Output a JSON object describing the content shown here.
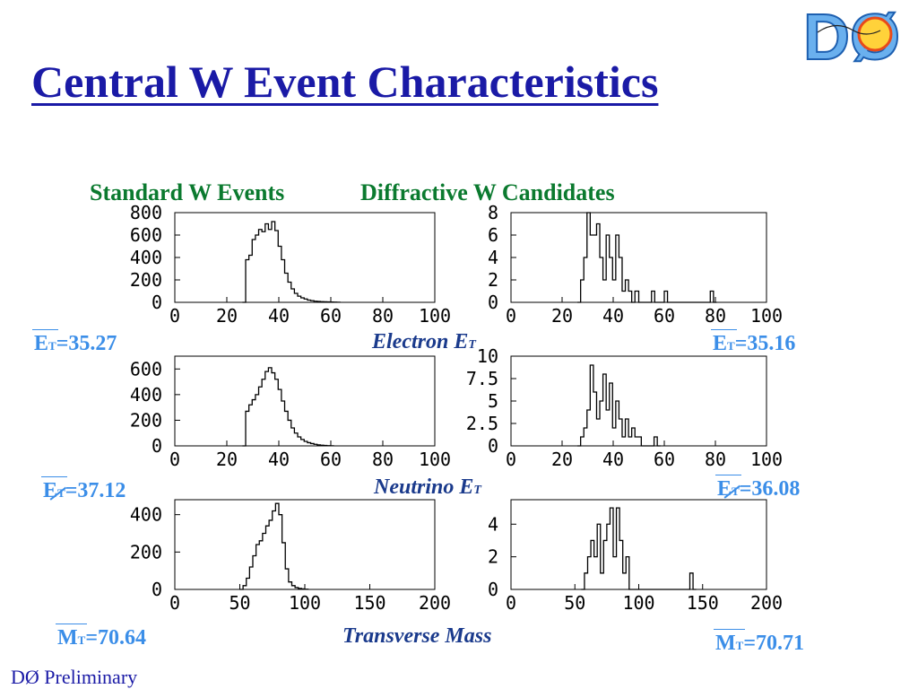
{
  "title": "Central W Event Characteristics",
  "logo_text": "DØ",
  "columns": {
    "left": "Standard W Events",
    "right": "Diffractive W Candidates"
  },
  "rows": {
    "electron": {
      "label": "Electron E",
      "sub": "T",
      "left_stat": "=35.27",
      "right_stat": "=35.16",
      "sym": "E",
      "sym_sub": "T"
    },
    "neutrino": {
      "label": "Neutrino E",
      "sub": "T",
      "left_stat": "=37.12",
      "right_stat": "=36.08",
      "sym": "E",
      "sym_sub": "T"
    },
    "mass": {
      "label": "Transverse Mass",
      "left_stat": "=70.64",
      "right_stat": "=70.71",
      "sym": "M",
      "sym_sub": "T"
    }
  },
  "footer": "DØ Preliminary",
  "colors": {
    "title": "#1a1aa6",
    "column_heads": "#0b7a2f",
    "stats": "#3b8ee8",
    "row_labels": "#1a3a8c"
  },
  "chart_data": [
    {
      "type": "histogram",
      "name": "standard-electron-et",
      "xlim": [
        0,
        100
      ],
      "ylim": [
        0,
        800
      ],
      "xticks": [
        "0",
        "20",
        "40",
        "60",
        "80",
        "100"
      ],
      "yticks": [
        "0",
        "200",
        "400",
        "600",
        "800"
      ],
      "bin_width": 1.25,
      "bins": [
        [
          26,
          0
        ],
        [
          27.25,
          380
        ],
        [
          28.5,
          420
        ],
        [
          29.75,
          560
        ],
        [
          31,
          600
        ],
        [
          32.25,
          650
        ],
        [
          33.5,
          630
        ],
        [
          34.75,
          700
        ],
        [
          36,
          650
        ],
        [
          37.25,
          720
        ],
        [
          38.5,
          640
        ],
        [
          39.75,
          500
        ],
        [
          41,
          380
        ],
        [
          42.25,
          260
        ],
        [
          43.5,
          180
        ],
        [
          44.75,
          120
        ],
        [
          46,
          80
        ],
        [
          47.25,
          55
        ],
        [
          48.5,
          40
        ],
        [
          49.75,
          30
        ],
        [
          51,
          20
        ],
        [
          52.25,
          15
        ],
        [
          53.5,
          10
        ],
        [
          54.75,
          8
        ],
        [
          56,
          6
        ],
        [
          57.25,
          5
        ],
        [
          58.5,
          4
        ],
        [
          59.75,
          3
        ],
        [
          61,
          2
        ],
        [
          62.25,
          1
        ]
      ]
    },
    {
      "type": "histogram",
      "name": "diffractive-electron-et",
      "xlim": [
        0,
        100
      ],
      "ylim": [
        0,
        8
      ],
      "xticks": [
        "0",
        "20",
        "40",
        "60",
        "80",
        "100"
      ],
      "yticks": [
        "0",
        "2",
        "4",
        "6",
        "8"
      ],
      "bin_width": 1.25,
      "bins": [
        [
          26,
          0
        ],
        [
          27.25,
          2
        ],
        [
          28.5,
          4
        ],
        [
          29.75,
          8
        ],
        [
          31,
          6
        ],
        [
          32.25,
          6
        ],
        [
          33.5,
          7
        ],
        [
          34.75,
          4
        ],
        [
          36,
          2
        ],
        [
          37.25,
          6
        ],
        [
          38.5,
          4
        ],
        [
          39.75,
          2
        ],
        [
          41,
          6
        ],
        [
          42.25,
          4
        ],
        [
          43.5,
          1
        ],
        [
          44.75,
          2
        ],
        [
          46,
          1
        ],
        [
          47.25,
          0
        ],
        [
          48.5,
          1
        ],
        [
          50,
          0
        ],
        [
          55,
          1
        ],
        [
          56.25,
          0
        ],
        [
          60,
          1
        ],
        [
          61.25,
          0
        ],
        [
          78,
          1
        ],
        [
          79.25,
          0
        ]
      ]
    },
    {
      "type": "histogram",
      "name": "standard-neutrino-et",
      "xlim": [
        0,
        100
      ],
      "ylim": [
        0,
        700
      ],
      "xticks": [
        "0",
        "20",
        "40",
        "60",
        "80",
        "100"
      ],
      "yticks": [
        "0",
        "200",
        "400",
        "600"
      ],
      "bin_width": 1.25,
      "bins": [
        [
          26,
          0
        ],
        [
          27.25,
          270
        ],
        [
          28.5,
          320
        ],
        [
          29.75,
          360
        ],
        [
          31,
          400
        ],
        [
          32.25,
          460
        ],
        [
          33.5,
          520
        ],
        [
          34.75,
          580
        ],
        [
          36,
          610
        ],
        [
          37.25,
          570
        ],
        [
          38.5,
          520
        ],
        [
          39.75,
          440
        ],
        [
          41,
          350
        ],
        [
          42.25,
          270
        ],
        [
          43.5,
          200
        ],
        [
          44.75,
          140
        ],
        [
          46,
          100
        ],
        [
          47.25,
          70
        ],
        [
          48.5,
          50
        ],
        [
          49.75,
          35
        ],
        [
          51,
          25
        ],
        [
          52.25,
          18
        ],
        [
          53.5,
          12
        ],
        [
          54.75,
          8
        ],
        [
          56,
          5
        ],
        [
          57.25,
          3
        ],
        [
          58.5,
          2
        ],
        [
          59.75,
          1
        ]
      ]
    },
    {
      "type": "histogram",
      "name": "diffractive-neutrino-et",
      "xlim": [
        0,
        100
      ],
      "ylim": [
        0,
        10
      ],
      "xticks": [
        "0",
        "20",
        "40",
        "60",
        "80",
        "100"
      ],
      "yticks": [
        "0",
        "2.5",
        "5",
        "7.5",
        "10"
      ],
      "bin_width": 1.25,
      "bins": [
        [
          26,
          0
        ],
        [
          27.25,
          1
        ],
        [
          28.5,
          2
        ],
        [
          29.75,
          4
        ],
        [
          31,
          9
        ],
        [
          32.25,
          6
        ],
        [
          33.5,
          3
        ],
        [
          34.75,
          5
        ],
        [
          36,
          8
        ],
        [
          37.25,
          4
        ],
        [
          38.5,
          7
        ],
        [
          39.75,
          2
        ],
        [
          41,
          5
        ],
        [
          42.25,
          3
        ],
        [
          43.5,
          1
        ],
        [
          44.75,
          3
        ],
        [
          46,
          1
        ],
        [
          47.25,
          2
        ],
        [
          48.5,
          1
        ],
        [
          49.75,
          1
        ],
        [
          51,
          0
        ],
        [
          56,
          1
        ],
        [
          57.25,
          0
        ]
      ]
    },
    {
      "type": "histogram",
      "name": "standard-transverse-mass",
      "xlim": [
        0,
        200
      ],
      "ylim": [
        0,
        480
      ],
      "xticks": [
        "0",
        "50",
        "100",
        "150",
        "200"
      ],
      "yticks": [
        "0",
        "200",
        "400"
      ],
      "bin_width": 2.5,
      "bins": [
        [
          50,
          0
        ],
        [
          52.5,
          20
        ],
        [
          55,
          60
        ],
        [
          57.5,
          120
        ],
        [
          60,
          180
        ],
        [
          62.5,
          240
        ],
        [
          65,
          260
        ],
        [
          67.5,
          300
        ],
        [
          70,
          340
        ],
        [
          72.5,
          370
        ],
        [
          75,
          420
        ],
        [
          77.5,
          460
        ],
        [
          80,
          400
        ],
        [
          82.5,
          250
        ],
        [
          85,
          110
        ],
        [
          87.5,
          40
        ],
        [
          90,
          20
        ],
        [
          92.5,
          10
        ],
        [
          95,
          5
        ],
        [
          97.5,
          3
        ],
        [
          100,
          1
        ]
      ]
    },
    {
      "type": "histogram",
      "name": "diffractive-transverse-mass",
      "xlim": [
        0,
        200
      ],
      "ylim": [
        0,
        5.5
      ],
      "xticks": [
        "0",
        "50",
        "100",
        "150",
        "200"
      ],
      "yticks": [
        "0",
        "2",
        "4"
      ],
      "bin_width": 2.5,
      "bins": [
        [
          55,
          0
        ],
        [
          57.5,
          1
        ],
        [
          60,
          2
        ],
        [
          62.5,
          3
        ],
        [
          65,
          2
        ],
        [
          67.5,
          4
        ],
        [
          70,
          1
        ],
        [
          72.5,
          3
        ],
        [
          75,
          4
        ],
        [
          77.5,
          5
        ],
        [
          80,
          2
        ],
        [
          82.5,
          5
        ],
        [
          85,
          3
        ],
        [
          87.5,
          1
        ],
        [
          90,
          2
        ],
        [
          92.5,
          0
        ],
        [
          140,
          1
        ],
        [
          142.5,
          0
        ]
      ]
    }
  ]
}
